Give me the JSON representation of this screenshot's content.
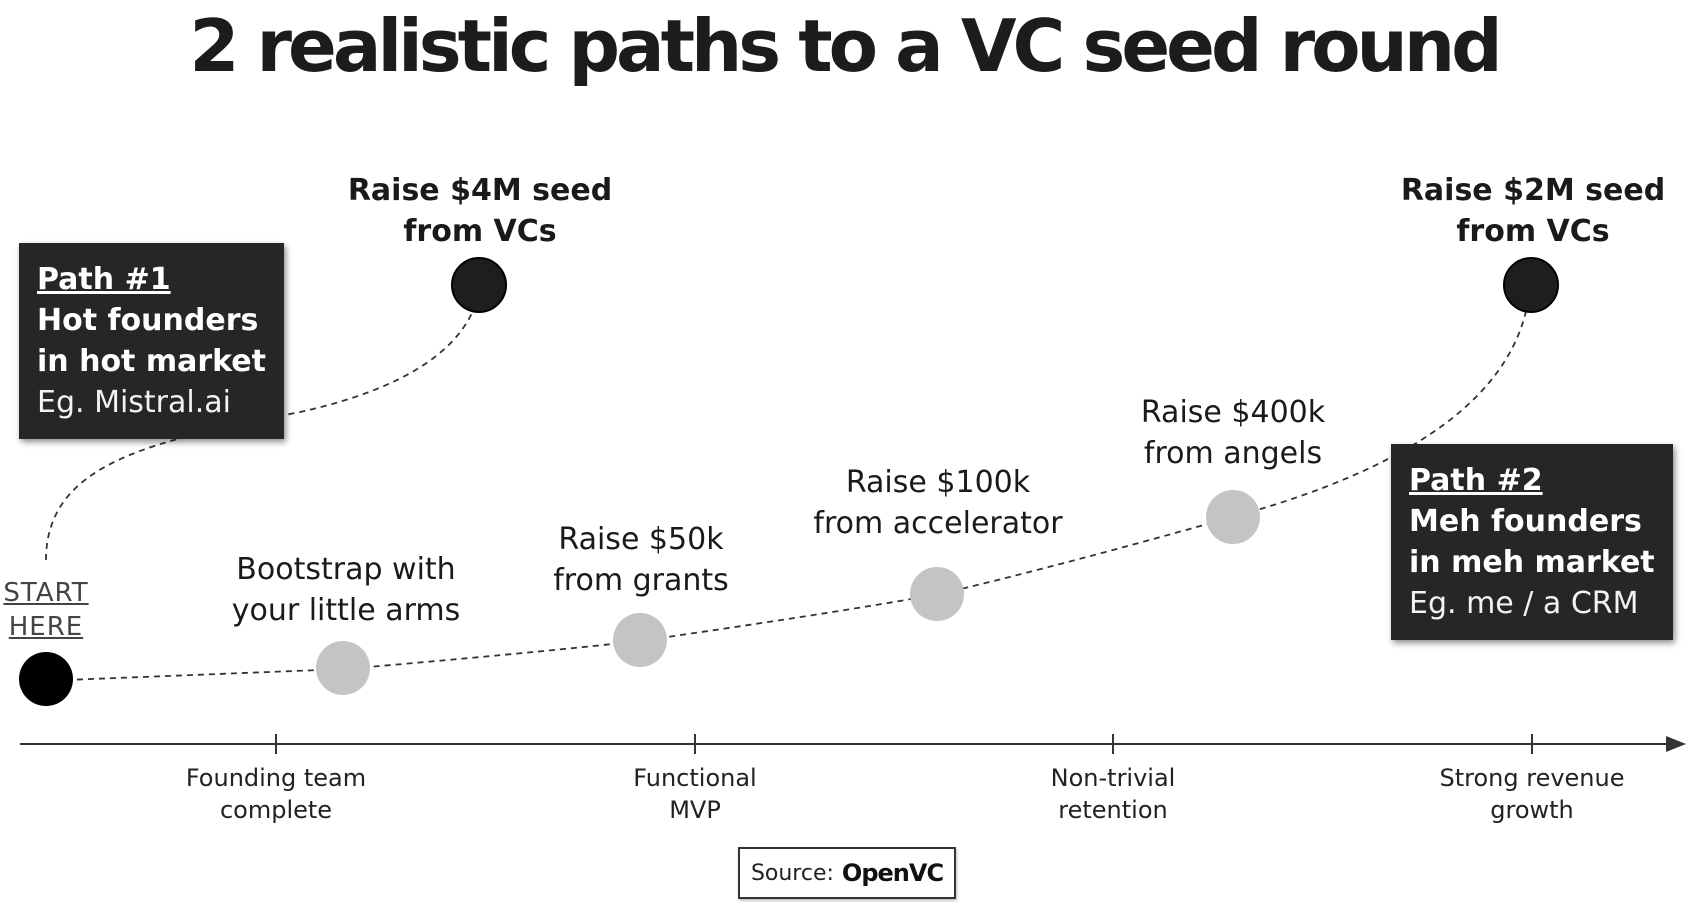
{
  "title": "2 realistic paths to a VC seed round",
  "start": {
    "lines": [
      "START",
      "HERE"
    ]
  },
  "path1": {
    "heading": "Path #1",
    "lines": [
      "Hot founders",
      "in hot market"
    ],
    "example": "Eg. Mistral.ai",
    "goal": {
      "lines": [
        "Raise $4M seed",
        "from VCs"
      ]
    }
  },
  "path2": {
    "heading": "Path #2",
    "lines": [
      "Meh founders",
      "in meh market"
    ],
    "example": "Eg. me / a CRM",
    "steps": [
      {
        "lines": [
          "Bootstrap with",
          "your little arms"
        ]
      },
      {
        "lines": [
          "Raise $50k",
          "from grants"
        ]
      },
      {
        "lines": [
          "Raise $100k",
          "from accelerator"
        ]
      },
      {
        "lines": [
          "Raise $400k",
          "from angels"
        ]
      }
    ],
    "goal": {
      "lines": [
        "Raise $2M seed",
        "from VCs"
      ]
    }
  },
  "milestones": [
    {
      "lines": [
        "Founding team",
        "complete"
      ]
    },
    {
      "lines": [
        "Functional",
        "MVP"
      ]
    },
    {
      "lines": [
        "Non-trivial",
        "retention"
      ]
    },
    {
      "lines": [
        "Strong revenue",
        "growth"
      ]
    }
  ],
  "source": {
    "prefix": "Source:",
    "brand": "OpenVC"
  },
  "colors": {
    "start_node": "#000000",
    "goal_node": "#1e1e1e",
    "step_node": "#c4c4c4",
    "box_bg": "#262626",
    "line": "#333333"
  }
}
